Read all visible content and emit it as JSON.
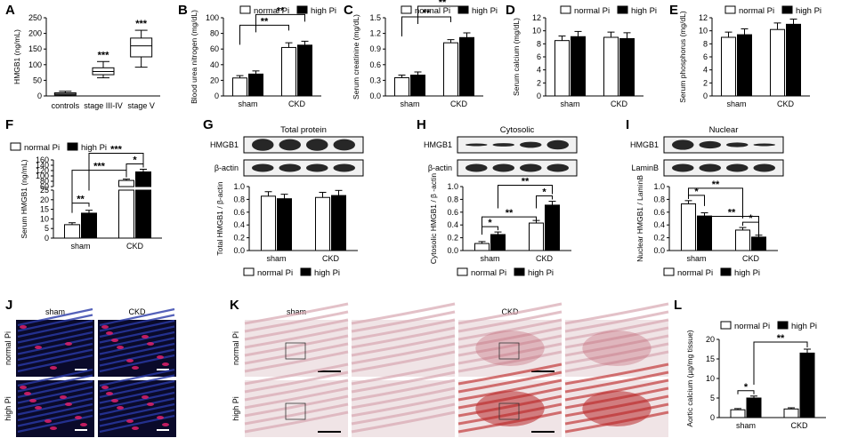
{
  "chart_data": [
    {
      "id": "A",
      "type": "box",
      "panel": "A",
      "ylabel": "HMGB1 (ng/mL)",
      "categories": [
        "controls",
        "stage III-IV",
        "stage V"
      ],
      "ylim": [
        0,
        250
      ],
      "yticks": [
        0,
        50,
        100,
        150,
        200,
        250
      ],
      "boxes": [
        {
          "min": 1,
          "q1": 3,
          "median": 6,
          "q3": 10,
          "max": 15
        },
        {
          "min": 58,
          "q1": 68,
          "median": 78,
          "q3": 90,
          "max": 110
        },
        {
          "min": 92,
          "q1": 125,
          "median": 160,
          "q3": 185,
          "max": 210
        }
      ],
      "sig": [
        "***",
        "***"
      ]
    },
    {
      "id": "B",
      "type": "bar",
      "panel": "B",
      "ylabel": "Blood urea nitrogen (mg/dL)",
      "categories": [
        "sham",
        "CKD"
      ],
      "ylim": [
        0,
        100
      ],
      "yticks": [
        0,
        20,
        40,
        60,
        80,
        100
      ],
      "series": [
        {
          "name": "normal Pi",
          "values": [
            23,
            62
          ],
          "err": [
            3,
            6
          ]
        },
        {
          "name": "high Pi",
          "values": [
            28,
            65
          ],
          "err": [
            4,
            5
          ]
        }
      ],
      "sig": [
        "**",
        "**"
      ]
    },
    {
      "id": "C",
      "type": "bar",
      "panel": "C",
      "ylabel": "Serum creatinine (mg/dL)",
      "categories": [
        "sham",
        "CKD"
      ],
      "ylim": [
        0,
        1.5
      ],
      "yticks": [
        "0.0",
        "0.3",
        "0.6",
        "0.9",
        "1.2",
        "1.5"
      ],
      "series": [
        {
          "name": "normal Pi",
          "values": [
            0.35,
            1.02
          ],
          "err": [
            0.05,
            0.06
          ]
        },
        {
          "name": "high Pi",
          "values": [
            0.4,
            1.12
          ],
          "err": [
            0.06,
            0.09
          ]
        }
      ],
      "sig": [
        "**",
        "**"
      ]
    },
    {
      "id": "D",
      "type": "bar",
      "panel": "D",
      "ylabel": "Serum calcium (mg/dL)",
      "categories": [
        "sham",
        "CKD"
      ],
      "ylim": [
        0,
        12
      ],
      "yticks": [
        0,
        2,
        4,
        6,
        8,
        10,
        12
      ],
      "series": [
        {
          "name": "normal Pi",
          "values": [
            8.5,
            9.0
          ],
          "err": [
            0.7,
            0.8
          ]
        },
        {
          "name": "high Pi",
          "values": [
            9.1,
            8.8
          ],
          "err": [
            0.8,
            0.9
          ]
        }
      ]
    },
    {
      "id": "E",
      "type": "bar",
      "panel": "E",
      "ylabel": "Serum phosphorus (mg/dL)",
      "categories": [
        "sham",
        "CKD"
      ],
      "ylim": [
        0,
        12
      ],
      "yticks": [
        0,
        2,
        4,
        6,
        8,
        10,
        12
      ],
      "series": [
        {
          "name": "normal Pi",
          "values": [
            9.0,
            10.2
          ],
          "err": [
            0.8,
            1.0
          ]
        },
        {
          "name": "high Pi",
          "values": [
            9.4,
            11.0
          ],
          "err": [
            0.9,
            0.8
          ]
        }
      ]
    },
    {
      "id": "F",
      "type": "bar",
      "panel": "F",
      "ylabel": "Serum HMGB1 (ng/mL)",
      "categories": [
        "sham",
        "CKD"
      ],
      "yticks": [
        0,
        5,
        10,
        15,
        20,
        25,
        60,
        80,
        100,
        120,
        140,
        160
      ],
      "series": [
        {
          "name": "normal Pi",
          "values": [
            7,
            83
          ],
          "err": [
            1,
            5
          ]
        },
        {
          "name": "high Pi",
          "values": [
            13,
            115
          ],
          "err": [
            1.5,
            10
          ]
        }
      ],
      "sig": [
        "**",
        "***",
        "*",
        "***"
      ]
    },
    {
      "id": "G",
      "type": "bar",
      "panel": "G",
      "title": "Total protein",
      "ylabel": "Total HMGB1 / β-actin",
      "categories": [
        "sham",
        "CKD"
      ],
      "ylim": [
        0,
        1.0
      ],
      "yticks": [
        "0.0",
        "0.2",
        "0.4",
        "0.6",
        "0.8",
        "1.0"
      ],
      "blots": [
        "HMGB1",
        "β-actin"
      ],
      "series": [
        {
          "name": "normal Pi",
          "values": [
            0.85,
            0.83
          ],
          "err": [
            0.07,
            0.08
          ]
        },
        {
          "name": "high Pi",
          "values": [
            0.81,
            0.86
          ],
          "err": [
            0.07,
            0.08
          ]
        }
      ]
    },
    {
      "id": "H",
      "type": "bar",
      "panel": "H",
      "title": "Cytosolic",
      "ylabel": "Cytosolic HMGB1 / β -actin",
      "categories": [
        "sham",
        "CKD"
      ],
      "ylim": [
        0,
        1.0
      ],
      "yticks": [
        "0.0",
        "0.2",
        "0.4",
        "0.6",
        "0.8",
        "1.0"
      ],
      "blots": [
        "HMGB1",
        "β-actin"
      ],
      "series": [
        {
          "name": "normal Pi",
          "values": [
            0.11,
            0.43
          ],
          "err": [
            0.03,
            0.04
          ]
        },
        {
          "name": "high Pi",
          "values": [
            0.25,
            0.71
          ],
          "err": [
            0.04,
            0.06
          ]
        }
      ],
      "sig": [
        "*",
        "**",
        "*",
        "**"
      ]
    },
    {
      "id": "I",
      "type": "bar",
      "panel": "I",
      "title": "Nuclear",
      "ylabel": "Nuclear HMGB1 / LaminB",
      "categories": [
        "sham",
        "CKD"
      ],
      "ylim": [
        0,
        1.0
      ],
      "yticks": [
        "0.0",
        "0.2",
        "0.4",
        "0.6",
        "0.8",
        "1.0"
      ],
      "blots": [
        "HMGB1",
        "LaminB"
      ],
      "series": [
        {
          "name": "normal Pi",
          "values": [
            0.73,
            0.32
          ],
          "err": [
            0.05,
            0.04
          ]
        },
        {
          "name": "high Pi",
          "values": [
            0.54,
            0.21
          ],
          "err": [
            0.05,
            0.03
          ]
        }
      ],
      "sig": [
        "*",
        "**",
        "*",
        "**"
      ]
    },
    {
      "id": "L",
      "type": "bar",
      "panel": "L",
      "ylabel": "Aortic calcium (µg/mg tissue)",
      "categories": [
        "sham",
        "CKD"
      ],
      "ylim": [
        0,
        20
      ],
      "yticks": [
        0,
        5,
        10,
        15,
        20
      ],
      "series": [
        {
          "name": "normal Pi",
          "values": [
            2.0,
            2.2
          ],
          "err": [
            0.3,
            0.3
          ]
        },
        {
          "name": "high Pi",
          "values": [
            5.0,
            16.5
          ],
          "err": [
            0.5,
            1.0
          ]
        }
      ],
      "sig": [
        "*",
        "**"
      ]
    }
  ],
  "legend": {
    "normal": "normal Pi",
    "high": "high Pi"
  },
  "panel_J": {
    "label": "J",
    "cols": [
      "sham",
      "CKD"
    ],
    "rows": [
      "normal Pi",
      "high Pi"
    ]
  },
  "panel_K": {
    "label": "K",
    "cols": [
      "sham",
      "CKD"
    ],
    "rows": [
      "normal Pi",
      "high Pi"
    ]
  },
  "colors": {
    "normal": "#ffffff",
    "high": "#000000"
  }
}
